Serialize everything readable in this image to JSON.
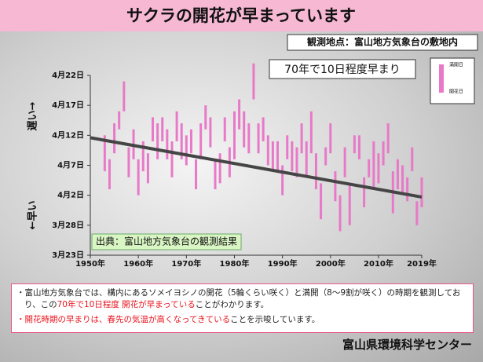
{
  "header": {
    "title": "サクラの開花が早まっています",
    "location": "観測地点：富山地方気象台の敷地内"
  },
  "chart_data": {
    "type": "floating-bar",
    "annotation": "70年で10日程度早まり",
    "source": "出典：富山地方気象台の観測結果",
    "y_label_top": "遅い→",
    "y_label_bottom": "←早い",
    "x": [
      1953,
      1954,
      1955,
      1956,
      1957,
      1958,
      1959,
      1960,
      1961,
      1962,
      1963,
      1964,
      1965,
      1966,
      1967,
      1968,
      1969,
      1970,
      1971,
      1972,
      1973,
      1974,
      1975,
      1976,
      1977,
      1978,
      1979,
      1980,
      1981,
      1982,
      1983,
      1984,
      1985,
      1986,
      1987,
      1988,
      1989,
      1990,
      1991,
      1992,
      1993,
      1994,
      1995,
      1996,
      1997,
      1998,
      1999,
      2000,
      2001,
      2002,
      2003,
      2004,
      2005,
      2006,
      2007,
      2008,
      2009,
      2010,
      2011,
      2012,
      2013,
      2014,
      2015,
      2016,
      2017,
      2018,
      2019
    ],
    "series": [
      {
        "name": "開花日",
        "color": "#e879c8",
        "values": [
          96,
          93,
          99,
          103,
          106,
          95,
          98,
          92,
          96,
          94,
          101,
          98,
          101,
          98,
          95,
          101,
          98,
          97,
          99,
          93,
          98,
          103,
          100,
          93,
          94,
          101,
          95,
          98,
          103,
          100,
          99,
          108,
          99,
          101,
          97,
          96,
          96,
          92,
          98,
          96,
          95,
          99,
          95,
          99,
          93,
          88,
          97,
          99,
          91,
          86,
          95,
          87,
          99,
          98,
          90,
          95,
          93,
          94,
          97,
          99,
          89,
          93,
          92,
          91,
          96,
          87,
          90
        ]
      },
      {
        "name": "満開日",
        "color": "#e879c8",
        "values": [
          102,
          98,
          104,
          106,
          111,
          100,
          103,
          98,
          101,
          99,
          105,
          104,
          105,
          103,
          101,
          106,
          104,
          102,
          103,
          98,
          104,
          107,
          105,
          98,
          99,
          105,
          100,
          106,
          108,
          106,
          104,
          114,
          104,
          105,
          102,
          101,
          101,
          97,
          102,
          101,
          100,
          104,
          101,
          106,
          99,
          94,
          100,
          104,
          96,
          92,
          100,
          94,
          102,
          102,
          95,
          98,
          101,
          99,
          101,
          104,
          96,
          98,
          97,
          95,
          100,
          91,
          95
        ]
      }
    ],
    "trend": {
      "x": [
        1950,
        2019
      ],
      "values": [
        101.6,
        91.7
      ],
      "color": "#454545"
    },
    "xlim": [
      1950,
      2019
    ],
    "xticks": [
      {
        "value": 1950,
        "label": "1950年"
      },
      {
        "value": 1960,
        "label": "1960年"
      },
      {
        "value": 1970,
        "label": "1970年"
      },
      {
        "value": 1980,
        "label": "1980年"
      },
      {
        "value": 1990,
        "label": "1990年"
      },
      {
        "value": 2000,
        "label": "2000年"
      },
      {
        "value": 2010,
        "label": "2010年"
      },
      {
        "value": 2019,
        "label": "2019年"
      }
    ],
    "ylim": [
      82,
      112
    ],
    "yticks": [
      {
        "value": 82,
        "label": "3月23日"
      },
      {
        "value": 87,
        "label": "3月28日"
      },
      {
        "value": 92,
        "label": "4月2日"
      },
      {
        "value": 97,
        "label": "4月7日"
      },
      {
        "value": 102,
        "label": "4月12日"
      },
      {
        "value": 107,
        "label": "4月17日"
      },
      {
        "value": 112,
        "label": "4月22日"
      }
    ]
  },
  "notes": [
    [
      {
        "text": "・富山地方気象台では、構内にあるソメイヨシノの開花（5輪くらい咲く）と満開（8～9割が咲く）の時期を観測しており、この",
        "color": "#222222"
      },
      {
        "text": "70年で10日程度 開花が早まっている",
        "color": "#e8141e"
      },
      {
        "text": "ことがわかります。",
        "color": "#222222"
      }
    ],
    [
      {
        "text": "・開花時期の早まりは、春先の気温が高くなってきている",
        "color": "#e8141e"
      },
      {
        "text": "ことを示唆しています。",
        "color": "#222222"
      }
    ]
  ],
  "footer": "富山県環境科学センター"
}
